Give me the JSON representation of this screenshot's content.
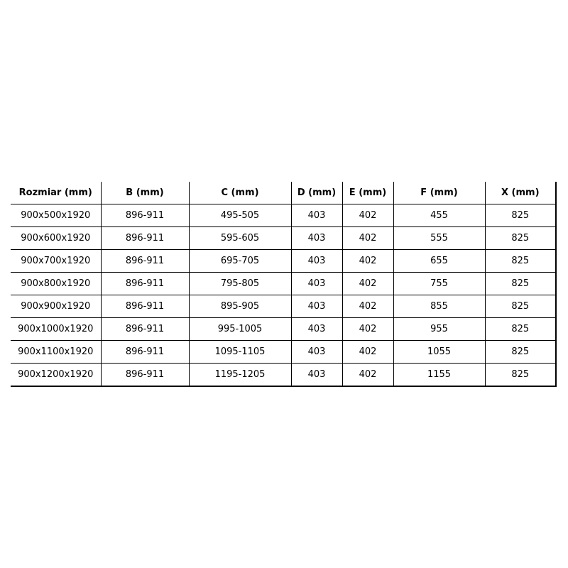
{
  "table": {
    "headers": [
      "Rozmiar (mm)",
      "B (mm)",
      "C (mm)",
      "D (mm)",
      "E (mm)",
      "F (mm)",
      "X (mm)"
    ],
    "rows": [
      [
        "900x500x1920",
        "896-911",
        "495-505",
        "403",
        "402",
        "455",
        "825"
      ],
      [
        "900x600x1920",
        "896-911",
        "595-605",
        "403",
        "402",
        "555",
        "825"
      ],
      [
        "900x700x1920",
        "896-911",
        "695-705",
        "403",
        "402",
        "655",
        "825"
      ],
      [
        "900x800x1920",
        "896-911",
        "795-805",
        "403",
        "402",
        "755",
        "825"
      ],
      [
        "900x900x1920",
        "896-911",
        "895-905",
        "403",
        "402",
        "855",
        "825"
      ],
      [
        "900x1000x1920",
        "896-911",
        "995-1005",
        "403",
        "402",
        "955",
        "825"
      ],
      [
        "900x1100x1920",
        "896-911",
        "1095-1105",
        "403",
        "402",
        "1055",
        "825"
      ],
      [
        "900x1200x1920",
        "896-911",
        "1195-1205",
        "403",
        "402",
        "1155",
        "825"
      ]
    ]
  }
}
